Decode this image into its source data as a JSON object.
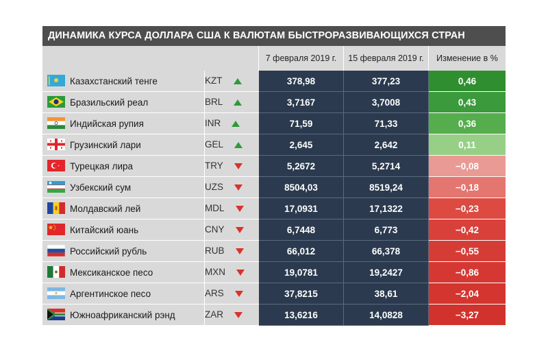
{
  "title": "ДИНАМИКА КУРСА ДОЛЛАРА США К ВАЛЮТАМ БЫСТРОРАЗВИВАЮЩИХСЯ СТРАН",
  "columns": {
    "date1": "7 февраля 2019 г.",
    "date2": "15 февраля 2019 г.",
    "change": "Изменение в %"
  },
  "colors": {
    "up_arrow": "#2e9a3a",
    "down_arrow": "#d8332b",
    "num_bg": "#2b3a4e",
    "header_bg": "#4e4e4e"
  },
  "chart_data": {
    "type": "table",
    "title": "ДИНАМИКА КУРСА ДОЛЛАРА США К ВАЛЮТАМ БЫСТРОРАЗВИВАЮЩИХСЯ СТРАН",
    "columns": [
      "7 февраля 2019 г.",
      "15 февраля 2019 г.",
      "Изменение в %"
    ],
    "rows": [
      {
        "flag": "kazakhstan-flag-icon",
        "name": "Казахстанский тенге",
        "code": "KZT",
        "trend": "up",
        "date1": "378,98",
        "date2": "377,23",
        "change": "0,46",
        "change_color": "#2f8f2f"
      },
      {
        "flag": "brazil-flag-icon",
        "name": "Бразильский реал",
        "code": "BRL",
        "trend": "up",
        "date1": "3,7167",
        "date2": "3,7008",
        "change": "0,43",
        "change_color": "#3b9a3b"
      },
      {
        "flag": "india-flag-icon",
        "name": "Индийская рупия",
        "code": "INR",
        "trend": "up",
        "date1": "71,59",
        "date2": "71,33",
        "change": "0,36",
        "change_color": "#55ad4d"
      },
      {
        "flag": "georgia-flag-icon",
        "name": "Грузинский лари",
        "code": "GEL",
        "trend": "up",
        "date1": "2,645",
        "date2": "2,642",
        "change": "0,11",
        "change_color": "#97cf86"
      },
      {
        "flag": "turkey-flag-icon",
        "name": "Турецкая лира",
        "code": "TRY",
        "trend": "down",
        "date1": "5,2672",
        "date2": "5,2714",
        "change": "−0,08",
        "change_color": "#e99a94"
      },
      {
        "flag": "uzbekistan-flag-icon",
        "name": "Узбекский сум",
        "code": "UZS",
        "trend": "down",
        "date1": "8504,03",
        "date2": "8519,24",
        "change": "−0,18",
        "change_color": "#e3766f"
      },
      {
        "flag": "moldova-flag-icon",
        "name": "Молдавский лей",
        "code": "MDL",
        "trend": "down",
        "date1": "17,0931",
        "date2": "17,1322",
        "change": "−0,23",
        "change_color": "#dc4a42"
      },
      {
        "flag": "china-flag-icon",
        "name": "Китайский юань",
        "code": "CNY",
        "trend": "down",
        "date1": "6,7448",
        "date2": "6,773",
        "change": "−0,42",
        "change_color": "#d8403a"
      },
      {
        "flag": "russia-flag-icon",
        "name": "Российский рубль",
        "code": "RUB",
        "trend": "down",
        "date1": "66,012",
        "date2": "66,378",
        "change": "−0,55",
        "change_color": "#d63c36"
      },
      {
        "flag": "mexico-flag-icon",
        "name": "Мексиканское песо",
        "code": "MXN",
        "trend": "down",
        "date1": "19,0781",
        "date2": "19,2427",
        "change": "−0,86",
        "change_color": "#d53832"
      },
      {
        "flag": "argentina-flag-icon",
        "name": "Аргентинское песо",
        "code": "ARS",
        "trend": "down",
        "date1": "37,8215",
        "date2": "38,61",
        "change": "−2,04",
        "change_color": "#d3352f"
      },
      {
        "flag": "south-africa-flag-icon",
        "name": "Южноафриканский рэнд",
        "code": "ZAR",
        "trend": "down",
        "date1": "13,6216",
        "date2": "14,0828",
        "change": "−3,27",
        "change_color": "#d1322c"
      }
    ]
  }
}
